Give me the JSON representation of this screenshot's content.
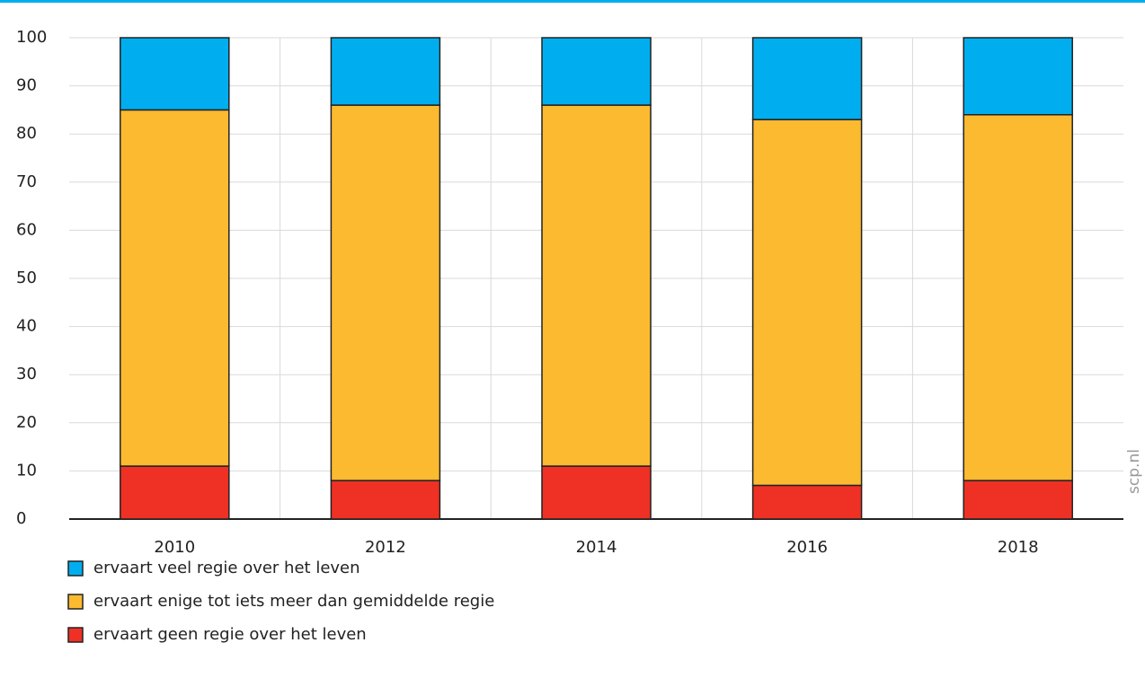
{
  "chart_data": {
    "type": "stacked_bar",
    "categories": [
      "2010",
      "2012",
      "2014",
      "2016",
      "2018"
    ],
    "series": [
      {
        "name": "ervaart geen regie over het leven",
        "color": "#ee3124",
        "values": [
          11,
          8,
          11,
          7,
          8
        ]
      },
      {
        "name": "ervaart enige tot iets meer dan gemiddelde regie",
        "color": "#fbba30",
        "values": [
          74,
          78,
          75,
          76,
          76
        ]
      },
      {
        "name": "ervaart veel regie over het leven",
        "color": "#00aeef",
        "values": [
          15,
          14,
          14,
          17,
          16
        ]
      }
    ],
    "ylim": [
      0,
      100
    ],
    "yticks": [
      0,
      10,
      20,
      30,
      40,
      50,
      60,
      70,
      80,
      90,
      100
    ],
    "grid": true,
    "source": "scp.nl"
  }
}
